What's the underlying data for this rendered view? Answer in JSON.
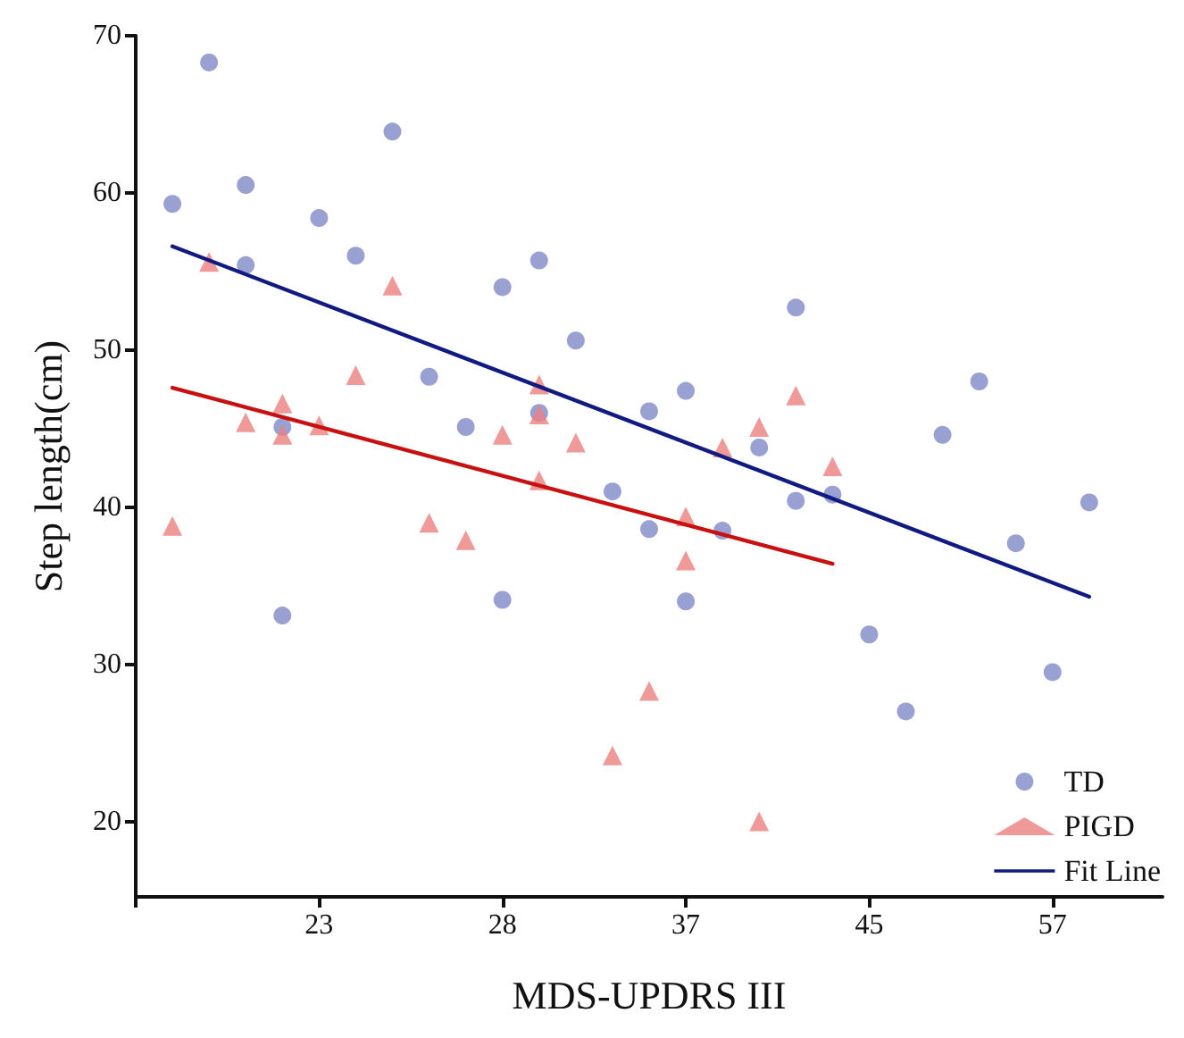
{
  "chart_data": {
    "type": "scatter",
    "xlabel": "MDS-UPDRS III",
    "ylabel": "Step length(cm)",
    "categories": [
      null,
      null,
      null,
      null,
      null,
      "23",
      null,
      null,
      null,
      null,
      "28",
      null,
      null,
      null,
      null,
      "37",
      null,
      null,
      null,
      null,
      "45",
      null,
      null,
      null,
      null,
      "57",
      null,
      null,
      null
    ],
    "ylim": [
      15.2,
      70
    ],
    "yticks": [
      20,
      30,
      40,
      50,
      60,
      70
    ],
    "grid": false,
    "legend": "bottom right",
    "series": [
      {
        "name": "TD",
        "marker": "circle",
        "color": "#7f89c7",
        "values": [
          null,
          59.3,
          68.3,
          60.5,
          45.1,
          58.4,
          56.0,
          63.9,
          48.3,
          45.1,
          54.0,
          55.7,
          50.6,
          41.0,
          46.1,
          47.4,
          38.5,
          43.8,
          52.7,
          40.8,
          31.9,
          27.0,
          44.6,
          48.0,
          37.7,
          29.5,
          40.3,
          null,
          null
        ]
      },
      {
        "marker": "circle",
        "color": "#7f89c7",
        "values": [
          null,
          null,
          null,
          55.4,
          33.1,
          null,
          null,
          null,
          null,
          null,
          34.1,
          46.0,
          null,
          null,
          38.6,
          34.0,
          null,
          null,
          40.4,
          null,
          null,
          null,
          null,
          null,
          null,
          null,
          null,
          null,
          null
        ]
      },
      {
        "name": "PIGD",
        "marker": "triangle",
        "color": "#eb7f7f",
        "values": [
          null,
          38.8,
          55.6,
          45.4,
          46.6,
          45.2,
          48.4,
          54.1,
          39.0,
          37.9,
          44.6,
          47.8,
          44.1,
          24.2,
          28.3,
          39.4,
          43.8,
          45.1,
          47.1,
          42.6,
          null,
          null,
          null,
          null,
          null,
          null,
          null,
          null,
          null
        ]
      },
      {
        "marker": "triangle",
        "color": "#eb7f7f",
        "values": [
          null,
          null,
          null,
          null,
          44.6,
          null,
          null,
          null,
          null,
          null,
          null,
          45.9,
          null,
          null,
          null,
          36.6,
          null,
          20.0,
          null,
          null,
          null,
          null,
          null,
          null,
          null,
          null,
          null,
          null,
          null
        ]
      },
      {
        "marker": "triangle",
        "color": "#eb7f7f",
        "values": [
          null,
          null,
          null,
          null,
          null,
          null,
          null,
          null,
          null,
          null,
          null,
          41.7,
          null,
          null,
          null,
          null,
          null,
          null,
          null,
          null,
          null,
          null,
          null,
          null,
          null,
          null,
          null,
          null,
          null
        ]
      },
      {
        "name": "Fit Line",
        "type": "line",
        "marker": "none",
        "color": "#101a80",
        "values": [
          null,
          56.6,
          null,
          null,
          null,
          null,
          null,
          null,
          null,
          null,
          null,
          null,
          null,
          null,
          null,
          null,
          null,
          null,
          null,
          null,
          null,
          null,
          null,
          null,
          null,
          null,
          34.3,
          null,
          null
        ]
      },
      {
        "type": "line",
        "marker": "none",
        "color": "#c81010",
        "values": [
          null,
          47.6,
          null,
          null,
          null,
          null,
          null,
          null,
          null,
          null,
          null,
          null,
          null,
          null,
          null,
          null,
          null,
          null,
          null,
          36.4,
          null,
          null,
          null,
          null,
          null,
          null,
          null,
          null,
          null
        ]
      }
    ]
  }
}
